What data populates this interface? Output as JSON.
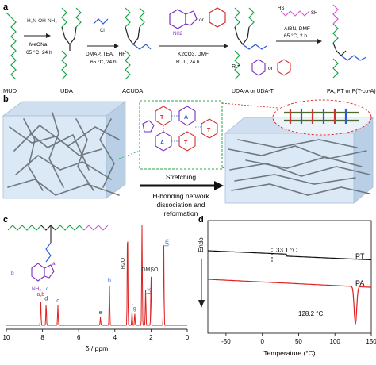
{
  "panels": {
    "a": {
      "label": "a",
      "compounds": [
        "MUD",
        "UDA",
        "ACUDA",
        "UDA-A or UDA-T",
        "PA, PT or P(T-co-A)"
      ],
      "steps": [
        {
          "reagent": "MeONa",
          "conditions": "65 °C, 24 h"
        },
        {
          "reagent": "DMAP, TEA, THF",
          "conditions": "65 °C, 24 h"
        },
        {
          "reagent": "K2CO3, DMF",
          "conditions": "R. T., 24 h"
        },
        {
          "reagent": "AIBN, DMF",
          "conditions": "65 °C, 2 h"
        }
      ],
      "misc": {
        "or": "or",
        "nh2": "NH2",
        "r_eq": "R ="
      }
    },
    "b": {
      "label": "b",
      "arrow_text": "Stretching",
      "caption_lines": [
        "H-bonding network",
        "dissociation and",
        "reformation"
      ]
    },
    "c": {
      "label": "c",
      "xlabel": "δ / ppm",
      "ticks": [
        "10",
        "8",
        "6",
        "4",
        "2",
        "0"
      ],
      "peak_labels": [
        {
          "text": "a,b",
          "color": "#d23232"
        },
        {
          "text": "d",
          "color": "#333333"
        },
        {
          "text": "c",
          "color": "#2a5bd7"
        },
        {
          "text": "e",
          "color": "#333333"
        },
        {
          "text": "h",
          "color": "#2a5bd7"
        },
        {
          "text": "H2O",
          "color": "#333333"
        },
        {
          "text": "f",
          "color": "#333333"
        },
        {
          "text": "g",
          "color": "#2a5bd7"
        },
        {
          "text": "DMSO",
          "color": "#333333"
        },
        {
          "text": "j,k",
          "color": "#2a5bd7"
        },
        {
          "text": "i",
          "color": "#1aa34a"
        },
        {
          "text": "l,m",
          "color": "#2a5bd7"
        }
      ]
    },
    "d": {
      "label": "d",
      "xlabel": "Temperature (°C)",
      "ylabel": "Endo",
      "ticks": [
        "-50",
        "0",
        "50",
        "100",
        "150"
      ],
      "curves": [
        {
          "name": "PT",
          "annotation": "33.1 °C",
          "color": "#111111"
        },
        {
          "name": "PA",
          "annotation": "128.2 °C",
          "color": "#e02020"
        }
      ]
    }
  },
  "chart_data": [
    {
      "type": "line",
      "title": "",
      "xlabel": "δ / ppm",
      "ylabel": "",
      "xlim": [
        10,
        0
      ],
      "x_reversed": true,
      "peaks": [
        {
          "label": "a,b",
          "ppm": 8.1
        },
        {
          "label": "d",
          "ppm": 7.8
        },
        {
          "label": "c",
          "ppm": 7.15
        },
        {
          "label": "e",
          "ppm": 4.8
        },
        {
          "label": "h",
          "ppm": 4.3
        },
        {
          "label": "H2O",
          "ppm": 3.3
        },
        {
          "label": "f",
          "ppm": 3.05
        },
        {
          "label": "g",
          "ppm": 2.9
        },
        {
          "label": "DMSO",
          "ppm": 2.5
        },
        {
          "label": "j,k",
          "ppm": 2.3
        },
        {
          "label": "i",
          "ppm": 2.0
        },
        {
          "label": "l,m",
          "ppm": 1.3
        }
      ]
    },
    {
      "type": "line",
      "title": "",
      "xlabel": "Temperature (°C)",
      "ylabel": "Endo",
      "xlim": [
        -75,
        150
      ],
      "series": [
        {
          "name": "PT",
          "transition_C": 33.1
        },
        {
          "name": "PA",
          "transition_C": 128.2
        }
      ]
    }
  ]
}
